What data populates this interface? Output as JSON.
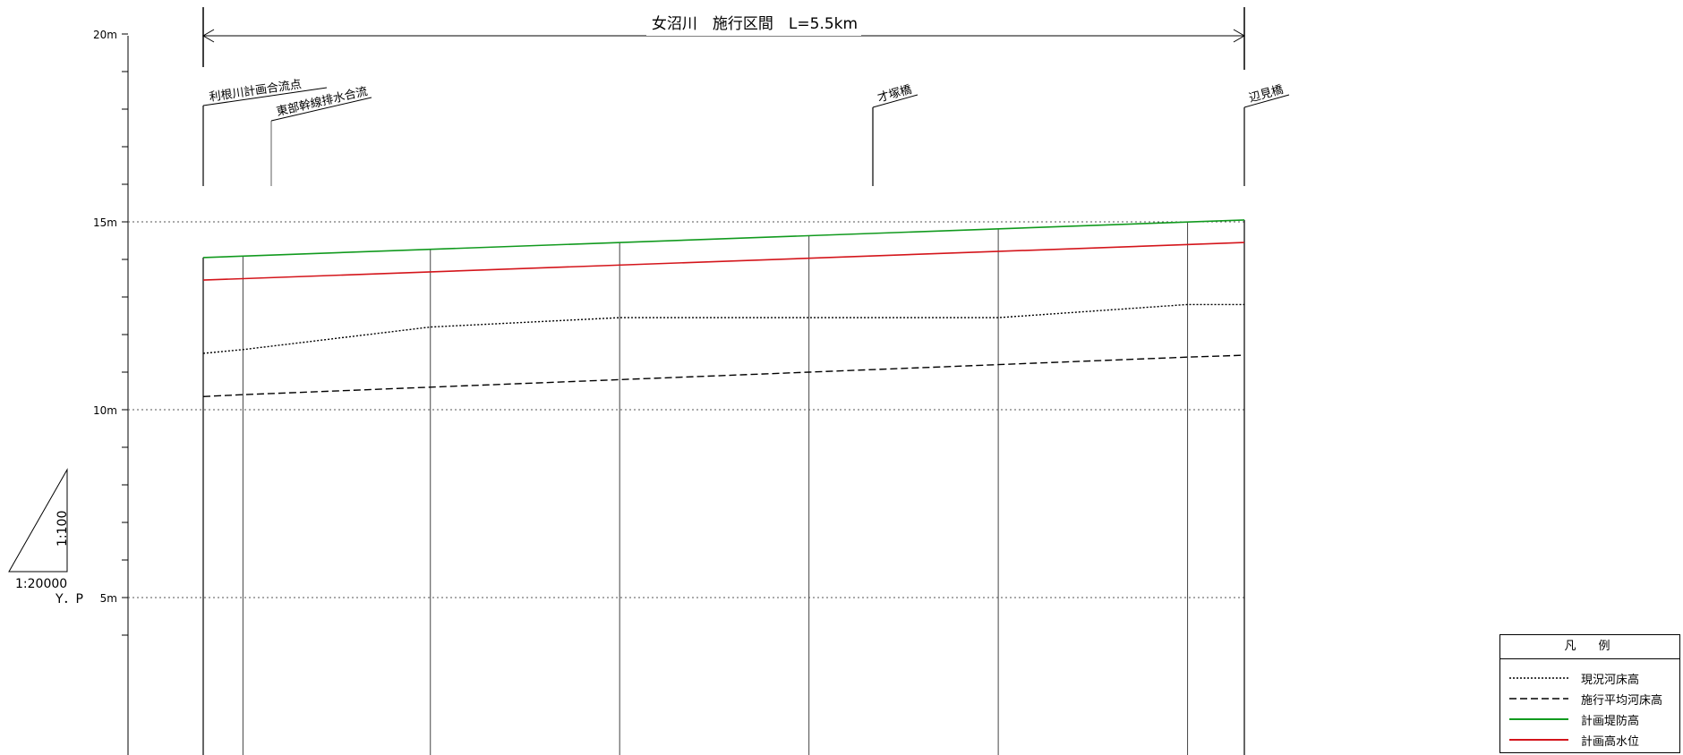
{
  "chart_data": {
    "type": "line",
    "title": "女沼川　施行区間　L=5.5km",
    "ylim": [
      4,
      21
    ],
    "y_ticks": [
      "20m",
      "15m",
      "10m",
      "5m"
    ],
    "grid_lines_at": [
      15,
      10,
      5
    ],
    "landmarks": [
      "利根川計画合流点",
      "東部幹線排水合流",
      "才塚橋",
      "辺見橋"
    ],
    "series": [
      {
        "name": "現況河床高",
        "style": "dotted",
        "color": "#000000",
        "points": [
          [
            0,
            11.5
          ],
          [
            0.21,
            11.6
          ],
          [
            1.2,
            12.2
          ],
          [
            2.2,
            12.45
          ],
          [
            3.2,
            12.45
          ],
          [
            4.2,
            12.45
          ],
          [
            5.2,
            12.8
          ],
          [
            5.5,
            12.8
          ]
        ]
      },
      {
        "name": "施行平均河床高",
        "style": "dashed",
        "color": "#000000",
        "points": [
          [
            0,
            10.35
          ],
          [
            0.21,
            10.4
          ],
          [
            1.2,
            10.6
          ],
          [
            2.2,
            10.8
          ],
          [
            3.2,
            11.0
          ],
          [
            4.2,
            11.2
          ],
          [
            5.2,
            11.4
          ],
          [
            5.5,
            11.45
          ]
        ]
      },
      {
        "name": "計画堤防高",
        "style": "solid",
        "color": "#119a1e",
        "points": [
          [
            0,
            14.05
          ],
          [
            5.5,
            15.05
          ]
        ]
      },
      {
        "name": "計画高水位",
        "style": "solid",
        "color": "#d4151b",
        "points": [
          [
            0,
            13.45
          ],
          [
            5.5,
            14.45
          ]
        ]
      }
    ]
  },
  "legend": {
    "title": "凡　例",
    "items": [
      {
        "label": "現況河床高",
        "style": "dotted",
        "color": "#000000"
      },
      {
        "label": "施行平均河床高",
        "style": "dashed",
        "color": "#000000"
      },
      {
        "label": "計画堤防高",
        "style": "solid",
        "color": "#119a1e"
      },
      {
        "label": "計画高水位",
        "style": "solid",
        "color": "#d4151b"
      }
    ]
  },
  "scale": {
    "vertical": "1:100",
    "horizontal": "1:20000",
    "datum": "Y．P"
  }
}
